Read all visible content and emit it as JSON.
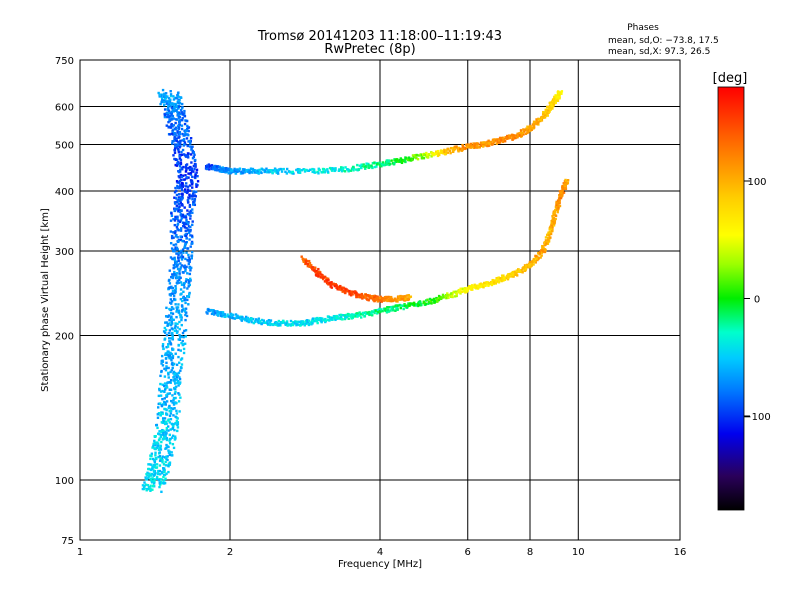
{
  "chart_data": {
    "type": "scatter",
    "title": "Tromsø 20141203 11:18:00–11:19:43",
    "subtitle": "RwPretec (8p)",
    "xlabel": "Frequency [MHz]",
    "ylabel": "Stationary phase Virtual Height [km]",
    "xscale": "log",
    "yscale": "log",
    "xlim": [
      1,
      16
    ],
    "ylim": [
      75,
      750
    ],
    "x_ticks": [
      1,
      2,
      4,
      6,
      8,
      10,
      16
    ],
    "y_ticks": [
      75,
      100,
      200,
      300,
      400,
      500,
      600,
      750
    ],
    "grid": true,
    "stats": {
      "heading": "Phases",
      "line_o": "mean, sd,O: −73.8, 17.5",
      "line_x": "mean, sd,X:  97.3, 26.5"
    },
    "colorbar": {
      "label": "[deg]",
      "min": -180,
      "max": 180,
      "ticks": [
        100,
        0,
        -100
      ],
      "tick_labels": [
        "100",
        "0",
        "−100"
      ],
      "colormap": "rainbow"
    },
    "series": [
      {
        "trace": "F-layer upper trace (~440–640 km)",
        "x": [
          1.8,
          1.9,
          2.0,
          2.2,
          2.5,
          3.0,
          3.5,
          4.0,
          4.5,
          5.0,
          5.5,
          6.0,
          6.5,
          7.0,
          7.5,
          8.0,
          8.5,
          8.8,
          9.0,
          9.2
        ],
        "y": [
          450,
          445,
          440,
          440,
          440,
          440,
          445,
          455,
          465,
          475,
          485,
          495,
          500,
          510,
          520,
          540,
          570,
          600,
          620,
          640
        ],
        "phase": [
          -100,
          -80,
          -70,
          -60,
          -50,
          -40,
          -30,
          -20,
          0,
          40,
          100,
          120,
          110,
          120,
          120,
          110,
          100,
          90,
          80,
          60
        ]
      },
      {
        "trace": "F-layer lower trace (~210–400 km)",
        "x": [
          1.8,
          2.0,
          2.2,
          2.5,
          2.8,
          3.0,
          3.3,
          3.6,
          4.0,
          4.5,
          5.0,
          5.5,
          6.0,
          6.5,
          7.0,
          7.5,
          8.0,
          8.5,
          8.8,
          9.0,
          9.2,
          9.5
        ],
        "y": [
          225,
          220,
          215,
          212,
          212,
          215,
          218,
          220,
          225,
          230,
          235,
          242,
          250,
          255,
          262,
          270,
          280,
          300,
          330,
          360,
          390,
          420
        ],
        "phase": [
          -70,
          -60,
          -50,
          -45,
          -45,
          -45,
          -40,
          -30,
          -20,
          -10,
          0,
          30,
          60,
          70,
          80,
          90,
          100,
          110,
          100,
          110,
          120,
          110
        ]
      },
      {
        "trace": "Lower-trace high-phase arc (~240–290 km)",
        "x": [
          2.8,
          3.0,
          3.2,
          3.5,
          3.8,
          4.0,
          4.3,
          4.6
        ],
        "y": [
          290,
          270,
          255,
          245,
          240,
          238,
          238,
          240
        ],
        "phase": [
          140,
          150,
          155,
          150,
          140,
          130,
          120,
          110
        ]
      },
      {
        "trace": "Vertical band near 1.6 MHz (~95–640 km)",
        "x": [
          1.5,
          1.55,
          1.6,
          1.65,
          1.6,
          1.6,
          1.58,
          1.55,
          1.52,
          1.5,
          1.45,
          1.4
        ],
        "y": [
          640,
          580,
          500,
          420,
          360,
          300,
          250,
          200,
          160,
          130,
          110,
          95
        ],
        "phase": [
          -60,
          -80,
          -90,
          -100,
          -90,
          -80,
          -70,
          -60,
          -60,
          -50,
          -50,
          -40
        ]
      }
    ]
  }
}
